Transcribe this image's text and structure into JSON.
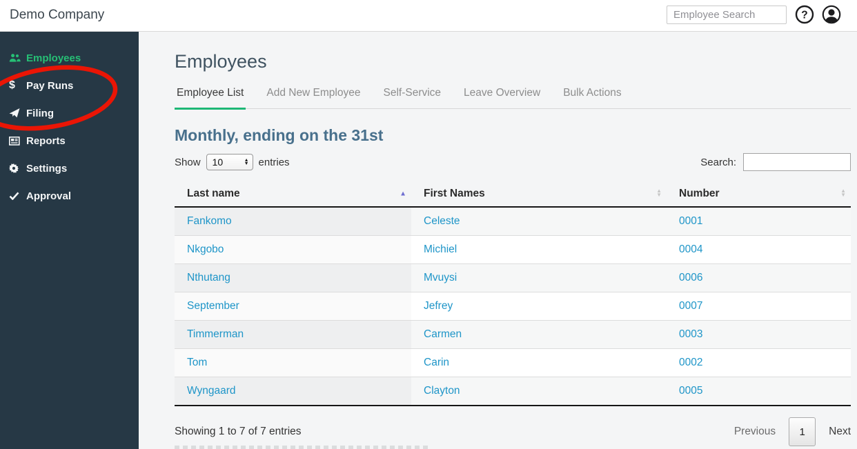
{
  "header": {
    "company_name": "Demo Company",
    "search_placeholder": "Employee Search"
  },
  "sidebar": {
    "items": [
      {
        "id": "employees",
        "label": "Employees",
        "icon": "users-icon",
        "active": true
      },
      {
        "id": "pay-runs",
        "label": "Pay Runs",
        "icon": "dollar-icon",
        "active": false
      },
      {
        "id": "filing",
        "label": "Filing",
        "icon": "paper-plane-icon",
        "active": false
      },
      {
        "id": "reports",
        "label": "Reports",
        "icon": "newspaper-icon",
        "active": false
      },
      {
        "id": "settings",
        "label": "Settings",
        "icon": "gear-icon",
        "active": false
      },
      {
        "id": "approval",
        "label": "Approval",
        "icon": "check-icon",
        "active": false
      }
    ],
    "annotation": {
      "shape": "hand-drawn-ellipse",
      "around": [
        "Pay Runs",
        "Filing"
      ],
      "color": "#ea1505"
    }
  },
  "main": {
    "title": "Employees",
    "tabs": [
      {
        "label": "Employee List",
        "active": true
      },
      {
        "label": "Add New Employee",
        "active": false
      },
      {
        "label": "Self-Service",
        "active": false
      },
      {
        "label": "Leave Overview",
        "active": false
      },
      {
        "label": "Bulk Actions",
        "active": false
      }
    ],
    "section_title": "Monthly, ending on the 31st",
    "entries_control": {
      "label_before": "Show",
      "selected": "10",
      "label_after": "entries"
    },
    "search": {
      "label": "Search:",
      "value": ""
    },
    "table": {
      "columns": [
        {
          "label": "Last name",
          "sort": "asc"
        },
        {
          "label": "First Names",
          "sort": "none"
        },
        {
          "label": "Number",
          "sort": "none"
        }
      ],
      "rows": [
        {
          "last_name": "Fankomo",
          "first_names": "Celeste",
          "number": "0001"
        },
        {
          "last_name": "Nkgobo",
          "first_names": "Michiel",
          "number": "0004"
        },
        {
          "last_name": "Nthutang",
          "first_names": "Mvuysi",
          "number": "0006"
        },
        {
          "last_name": "September",
          "first_names": "Jefrey",
          "number": "0007"
        },
        {
          "last_name": "Timmerman",
          "first_names": "Carmen",
          "number": "0003"
        },
        {
          "last_name": "Tom",
          "first_names": "Carin",
          "number": "0002"
        },
        {
          "last_name": "Wyngaard",
          "first_names": "Clayton",
          "number": "0005"
        }
      ]
    },
    "footer": {
      "summary": "Showing 1 to 7 of 7 entries",
      "pagination": {
        "previous": "Previous",
        "current": "1",
        "next": "Next"
      }
    }
  },
  "colors": {
    "sidebar_bg": "#263845",
    "accent_green": "#26bf75",
    "tab_underline_green": "#1eb876",
    "link_blue": "#1e95c8",
    "section_heading_blue": "#48708c",
    "annotation_red": "#ea1505",
    "sorted_arrow_purple": "#6e6ed0"
  }
}
